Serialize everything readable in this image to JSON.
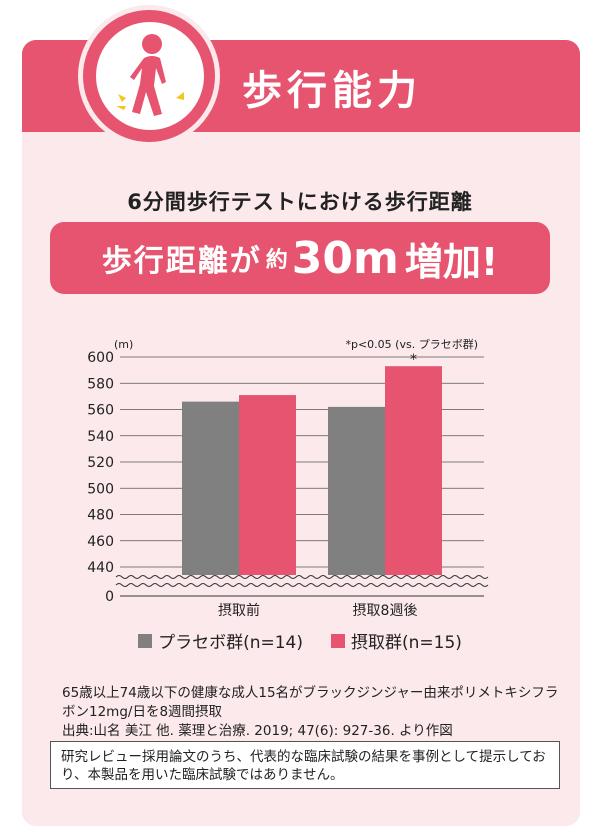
{
  "header": {
    "title": "歩行能力",
    "icon": "walking-person-icon"
  },
  "subtitle": "6分間歩行テストにおける歩行距離",
  "highlight": {
    "part1": "歩行距離が",
    "part2": "約",
    "part3": "30m",
    "part4": "増加!"
  },
  "colors": {
    "accent": "#e6546f",
    "placebo": "#808080",
    "intake": "#e6546f",
    "background": "#fbe9ec"
  },
  "chart_data": {
    "type": "bar",
    "unit_label": "(m)",
    "significance_note": "*p<0.05 (vs. プラセボ群)",
    "categories": [
      "摂取前",
      "摂取8週後"
    ],
    "series": [
      {
        "name": "プラセボ群(n=14)",
        "values": [
          566,
          562
        ]
      },
      {
        "name": "摂取群(n=15)",
        "values": [
          571,
          593
        ]
      }
    ],
    "y_ticks": [
      "0",
      "440",
      "460",
      "480",
      "500",
      "520",
      "540",
      "560",
      "580",
      "600"
    ],
    "ylim": [
      430,
      600
    ],
    "axis_break": true,
    "significance_marker": "*",
    "grid": true,
    "legend_position": "bottom"
  },
  "notes": {
    "line1": "65歳以上74歳以下の健康な成人15名がブラックジンジャー由来ポリメトキシフラ",
    "line2": "ボン12mg/日を8週間摂取",
    "source": "出典:山名 美江 他. 薬理と治療. 2019; 47(6): 927-36. より作図"
  },
  "disclaimer": "研究レビュー採用論文のうち、代表的な臨床試験の結果を事例として提示しており、本製品を用いた臨床試験ではありません。"
}
